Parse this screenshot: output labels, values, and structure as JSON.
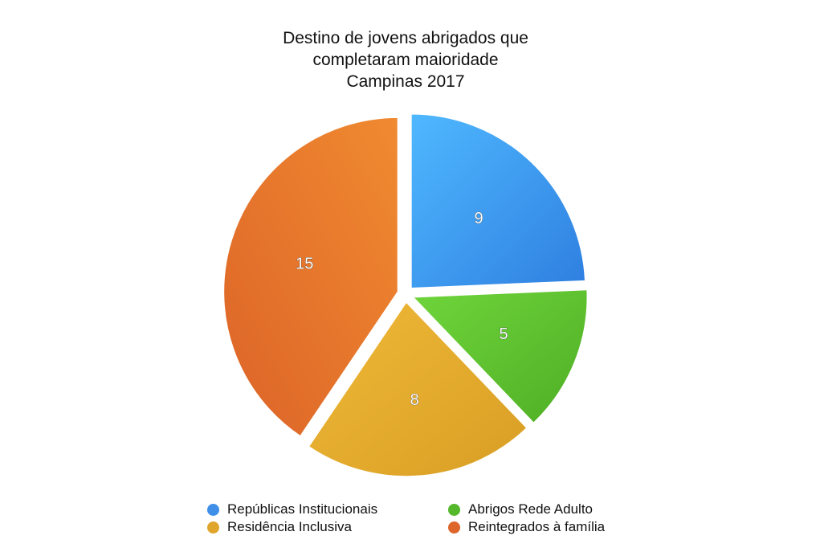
{
  "title_lines": [
    "Destino de jovens abrigados que",
    "completaram maioridade",
    "Campinas 2017"
  ],
  "chart_data": {
    "type": "pie",
    "title": "Destino de jovens abrigados que completaram maioridade Campinas 2017",
    "categories": [
      "Repúblicas Institucionais",
      "Abrigos Rede Adulto",
      "Residência Inclusiva",
      "Reintegrados à família"
    ],
    "values": [
      9,
      5,
      8,
      15
    ],
    "colors": [
      "#3f95f0",
      "#5cc22e",
      "#e3a92c",
      "#e2692b"
    ],
    "data_labels": [
      "9",
      "5",
      "8",
      "15"
    ],
    "exploded": true,
    "legend": "bottom"
  }
}
